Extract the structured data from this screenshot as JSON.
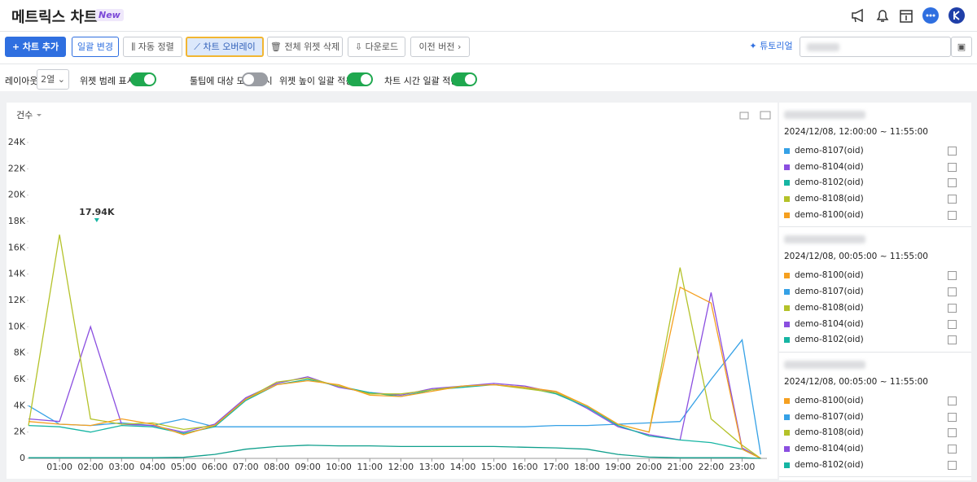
{
  "header": {
    "title": "메트릭스 차트",
    "badge": "New"
  },
  "toolbar": {
    "buttons": [
      "차트 추가",
      "일괄 변경",
      "자동 정렬",
      "차트 오버레이",
      "전체 위젯 삭제",
      "다운로드",
      "이전 버전"
    ],
    "tutorial": "튜토리얼"
  },
  "options": {
    "layout_label": "레이아웃",
    "layout_value": "2열",
    "toggles": [
      {
        "label": "위젯 범례 표시",
        "on": true
      },
      {
        "label": "툴팁에 대상 모두 표시",
        "on": false
      },
      {
        "label": "위젯 높이 일괄 적용",
        "on": true
      },
      {
        "label": "차트 시간 일괄 적용",
        "on": true
      }
    ]
  },
  "chart_data": {
    "type": "line",
    "y_label": "건수",
    "x": [
      0,
      1,
      2,
      3,
      4,
      5,
      6,
      7,
      8,
      9,
      10,
      11,
      12,
      13,
      14,
      15,
      16,
      17,
      18,
      19,
      20,
      21,
      22,
      23,
      23.6
    ],
    "xlim": [
      0,
      23.8
    ],
    "xticks": [
      {
        "value": 1,
        "label": "01:00"
      },
      {
        "value": 2,
        "label": "02:00"
      },
      {
        "value": 3,
        "label": "03:00"
      },
      {
        "value": 4,
        "label": "04:00"
      },
      {
        "value": 5,
        "label": "05:00"
      },
      {
        "value": 6,
        "label": "06:00"
      },
      {
        "value": 7,
        "label": "07:00"
      },
      {
        "value": 8,
        "label": "08:00"
      },
      {
        "value": 9,
        "label": "09:00"
      },
      {
        "value": 10,
        "label": "10:00"
      },
      {
        "value": 11,
        "label": "11:00"
      },
      {
        "value": 12,
        "label": "12:00"
      },
      {
        "value": 13,
        "label": "13:00"
      },
      {
        "value": 14,
        "label": "14:00"
      },
      {
        "value": 15,
        "label": "15:00"
      },
      {
        "value": 16,
        "label": "16:00"
      },
      {
        "value": 17,
        "label": "17:00"
      },
      {
        "value": 18,
        "label": "18:00"
      },
      {
        "value": 19,
        "label": "19:00"
      },
      {
        "value": 20,
        "label": "20:00"
      },
      {
        "value": 21,
        "label": "21:00"
      },
      {
        "value": 22,
        "label": "22:00"
      },
      {
        "value": 23,
        "label": "23:00"
      }
    ],
    "ylim": [
      0,
      24000
    ],
    "yticks": [
      0,
      {
        "value": 2000,
        "label": "2K"
      },
      {
        "value": 4000,
        "label": "4K"
      },
      {
        "value": 6000,
        "label": "6K"
      },
      {
        "value": 8000,
        "label": "8K"
      },
      {
        "value": 10000,
        "label": "10K"
      },
      {
        "value": 12000,
        "label": "12K"
      },
      {
        "value": 14000,
        "label": "14K"
      },
      {
        "value": 16000,
        "label": "16K"
      },
      {
        "value": 18000,
        "label": "18K"
      },
      {
        "value": 20000,
        "label": "20K"
      },
      {
        "value": 22000,
        "label": "22K"
      },
      {
        "value": 24000,
        "label": "24K"
      }
    ],
    "series": [
      {
        "color": "#35a1e6",
        "values": [
          4000,
          2600,
          2500,
          2700,
          2500,
          3000,
          2400,
          2400,
          2400,
          2400,
          2400,
          2400,
          2400,
          2400,
          2400,
          2400,
          2400,
          2500,
          2500,
          2600,
          2700,
          2800,
          6000,
          9000,
          300
        ]
      },
      {
        "color": "#8b4fe0",
        "values": [
          3000,
          2800,
          10000,
          2600,
          2500,
          2000,
          2600,
          4600,
          5700,
          6200,
          5400,
          5000,
          4800,
          5300,
          5500,
          5700,
          5500,
          5000,
          3800,
          2400,
          1800,
          1400,
          12600,
          800,
          0
        ]
      },
      {
        "color": "#16b5a3",
        "values": [
          2500,
          2400,
          2000,
          2500,
          2400,
          1900,
          2400,
          4400,
          5600,
          6000,
          5500,
          5000,
          4700,
          5200,
          5400,
          5600,
          5400,
          4900,
          3900,
          2500,
          1700,
          1400,
          1200,
          700,
          0
        ]
      },
      {
        "color": "#b4c229",
        "values": [
          2500,
          17000,
          3000,
          2600,
          2700,
          2200,
          2500,
          4500,
          5800,
          6100,
          5500,
          4900,
          4900,
          5200,
          5500,
          5600,
          5300,
          5000,
          4000,
          2600,
          2000,
          14500,
          3000,
          1000,
          0
        ]
      },
      {
        "color": "#f5a020",
        "values": [
          2800,
          2600,
          2500,
          3000,
          2600,
          1800,
          2500,
          4500,
          5600,
          5900,
          5600,
          4800,
          4700,
          5100,
          5500,
          5600,
          5400,
          5100,
          4000,
          2600,
          2000,
          13000,
          11800,
          700,
          0
        ]
      },
      {
        "color": "#0f9f8c",
        "values": [
          50,
          50,
          50,
          50,
          50,
          80,
          300,
          700,
          900,
          1000,
          950,
          950,
          900,
          900,
          900,
          900,
          850,
          800,
          700,
          300,
          100,
          50,
          50,
          50,
          0
        ]
      }
    ],
    "annotation": {
      "x": 2.2,
      "value": 17940,
      "label": "17.94K",
      "color": "#16b5a3"
    }
  },
  "panel": {
    "groups": [
      {
        "range": "2024/12/08, 12:00:00 ~ 11:55:00",
        "items": [
          {
            "name": "demo-8107(oid)",
            "color": "#35a1e6"
          },
          {
            "name": "demo-8104(oid)",
            "color": "#8b4fe0"
          },
          {
            "name": "demo-8102(oid)",
            "color": "#16b5a3"
          },
          {
            "name": "demo-8108(oid)",
            "color": "#b4c229"
          },
          {
            "name": "demo-8100(oid)",
            "color": "#f5a020"
          }
        ]
      },
      {
        "range": "2024/12/08, 00:05:00 ~ 11:55:00",
        "items": [
          {
            "name": "demo-8100(oid)",
            "color": "#f5a020"
          },
          {
            "name": "demo-8107(oid)",
            "color": "#35a1e6"
          },
          {
            "name": "demo-8108(oid)",
            "color": "#b4c229"
          },
          {
            "name": "demo-8104(oid)",
            "color": "#8b4fe0"
          },
          {
            "name": "demo-8102(oid)",
            "color": "#16b5a3"
          }
        ]
      },
      {
        "range": "2024/12/08, 00:05:00 ~ 11:55:00",
        "items": [
          {
            "name": "demo-8100(oid)",
            "color": "#f5a020"
          },
          {
            "name": "demo-8107(oid)",
            "color": "#35a1e6"
          },
          {
            "name": "demo-8108(oid)",
            "color": "#b4c229"
          },
          {
            "name": "demo-8104(oid)",
            "color": "#8b4fe0"
          },
          {
            "name": "demo-8102(oid)",
            "color": "#16b5a3"
          }
        ]
      }
    ]
  }
}
